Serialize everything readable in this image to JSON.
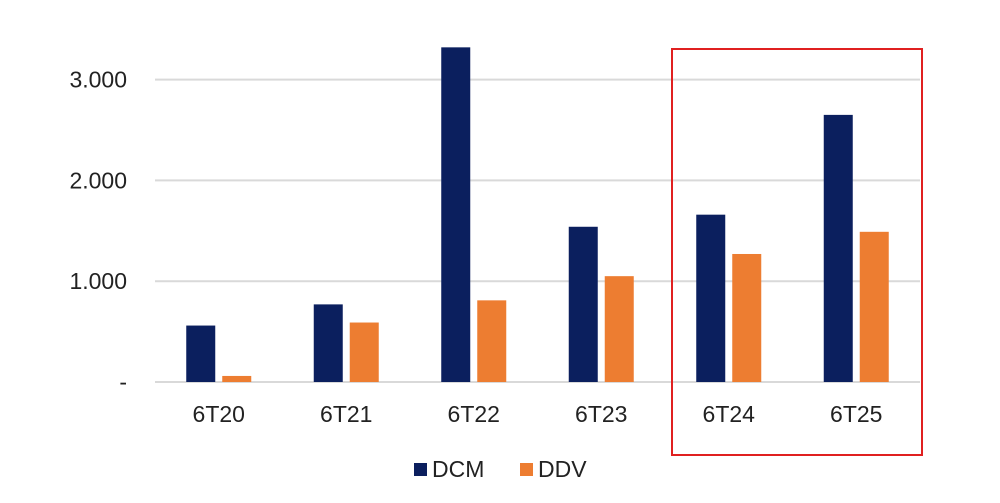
{
  "chart_data": {
    "type": "bar",
    "categories": [
      "6T20",
      "6T21",
      "6T22",
      "6T23",
      "6T24",
      "6T25"
    ],
    "series": [
      {
        "name": "DCM",
        "color": "#0b1f5e",
        "values": [
          560,
          770,
          3320,
          1540,
          1660,
          2650
        ]
      },
      {
        "name": "DDV",
        "color": "#ed7d31",
        "values": [
          60,
          590,
          810,
          1050,
          1270,
          1490
        ]
      }
    ],
    "ylim": [
      0,
      3500
    ],
    "yticks": [
      {
        "value": 0,
        "label": "-"
      },
      {
        "value": 1000,
        "label": "1.000"
      },
      {
        "value": 2000,
        "label": "2.000"
      },
      {
        "value": 3000,
        "label": "3.000"
      }
    ],
    "grid": true,
    "legend_position": "bottom-center",
    "highlight": {
      "categories": [
        "6T24",
        "6T25"
      ],
      "color": "#e02020"
    },
    "gridline_color": "#d9d9d9"
  }
}
